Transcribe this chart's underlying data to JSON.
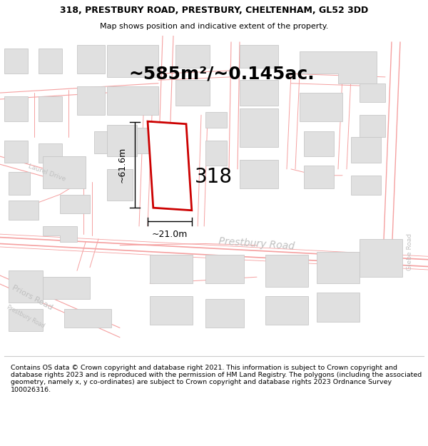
{
  "title_line1": "318, PRESTBURY ROAD, PRESTBURY, CHELTENHAM, GL52 3DD",
  "title_line2": "Map shows position and indicative extent of the property.",
  "area_label": "~585m²/~0.145ac.",
  "property_number": "318",
  "dim_vertical": "~61.6m",
  "dim_horizontal": "~21.0m",
  "road_label_main": "Prestbury Road",
  "road_label_laurel": "Laurel Drive",
  "road_label_priors": "Priors Road",
  "road_label_prestbury2": "Prestbury Road",
  "road_label_glebe": "Glebe Road",
  "footer_text": "Contains OS data © Crown copyright and database right 2021. This information is subject to Crown copyright and database rights 2023 and is reproduced with the permission of HM Land Registry. The polygons (including the associated geometry, namely x, y co-ordinates) are subject to Crown copyright and database rights 2023 Ordnance Survey 100026316.",
  "map_bg": "#ffffff",
  "road_line_color": "#f5a0a0",
  "bld_fill": "#e0e0e0",
  "bld_edge": "#c8c8c8",
  "prop_fill": "#ffffff",
  "prop_edge": "#cc0000",
  "road_text_color": "#c0c0c0",
  "dim_color": "#000000",
  "white": "#ffffff",
  "title_fontsize": 9,
  "subtitle_fontsize": 8,
  "footer_fontsize": 6.8
}
